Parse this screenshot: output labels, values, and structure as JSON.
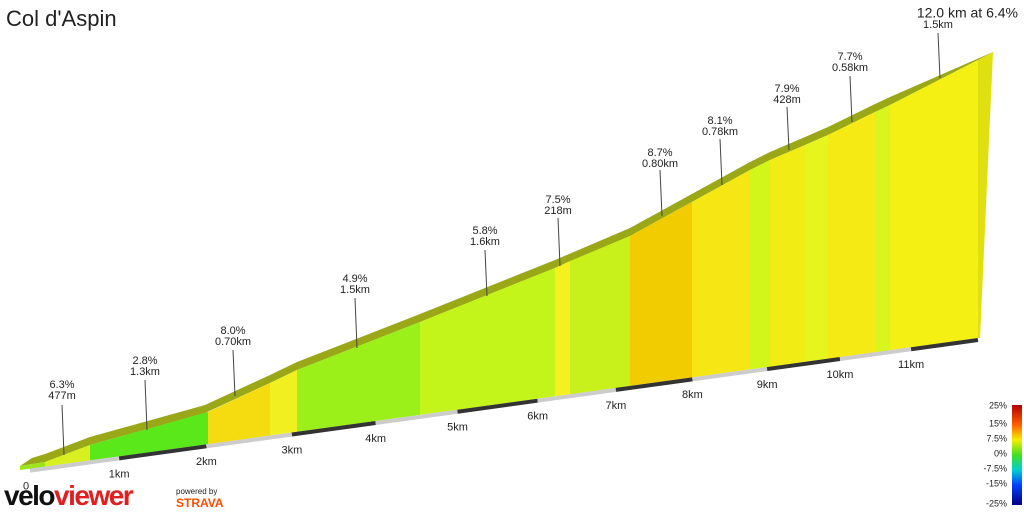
{
  "chart_data": {
    "type": "climb-profile",
    "title": "Col d'Aspin",
    "subtitle": "12.0 km at 6.4%",
    "xticks": [
      0,
      {
        "value": 1,
        "label": "1km"
      },
      {
        "value": 2,
        "label": "2km"
      },
      {
        "value": 3,
        "label": "3km"
      },
      {
        "value": 4,
        "label": "4km"
      },
      {
        "value": 5,
        "label": "5km"
      },
      {
        "value": 6,
        "label": "6km"
      },
      {
        "value": 7,
        "label": "7km"
      },
      {
        "value": 8,
        "label": "8km"
      },
      {
        "value": 9,
        "label": "9km"
      },
      {
        "value": 10,
        "label": "10km"
      },
      {
        "value": 11,
        "label": "11km"
      }
    ],
    "annotations": [
      {
        "grade": "6.3%",
        "length": "477m"
      },
      {
        "grade": "2.8%",
        "length": "1.3km"
      },
      {
        "grade": "8.0%",
        "length": "0.70km"
      },
      {
        "grade": "4.9%",
        "length": "1.5km"
      },
      {
        "grade": "5.8%",
        "length": "1.6km"
      },
      {
        "grade": "7.5%",
        "length": "218m"
      },
      {
        "grade": "8.7%",
        "length": "0.80km"
      },
      {
        "grade": "8.1%",
        "length": "0.78km"
      },
      {
        "grade": "7.9%",
        "length": "428m"
      },
      {
        "grade": "7.7%",
        "length": "0.58km"
      },
      {
        "length": "1.5km"
      }
    ],
    "scale_labels": [
      "25%",
      "15%",
      "7.5%",
      "0%",
      "-7.5%",
      "-15%",
      "-25%"
    ],
    "logo": {
      "velo": "velo",
      "viewer": "viewer",
      "powered_by": "powered by",
      "strava": "STRAVA"
    }
  }
}
